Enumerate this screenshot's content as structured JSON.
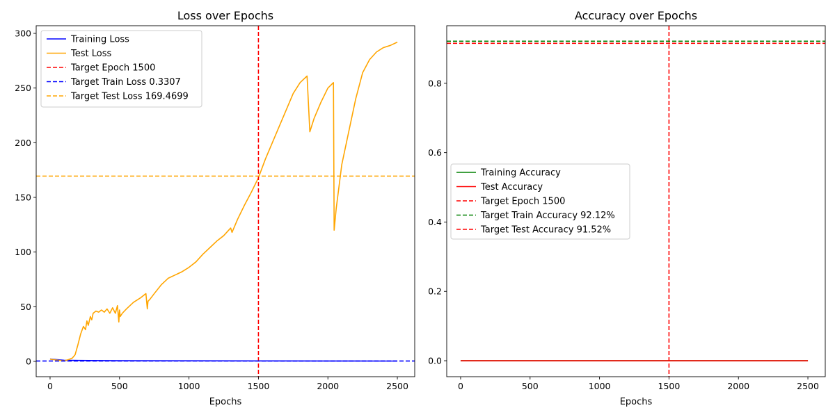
{
  "chart_data": [
    {
      "type": "line",
      "title": "Loss over Epochs",
      "xlabel": "Epochs",
      "ylabel": "",
      "xlim": [
        -100,
        2625
      ],
      "ylim": [
        -14,
        307
      ],
      "xticks": [
        0,
        500,
        1000,
        1500,
        2000,
        2500
      ],
      "yticks": [
        0,
        50,
        100,
        150,
        200,
        250,
        300
      ],
      "grid": false,
      "legend_position": "upper-left",
      "series": [
        {
          "name": "Training Loss",
          "color": "#0000ff",
          "style": "solid",
          "x": [
            0,
            100,
            200,
            500,
            1000,
            1500,
            2000,
            2500
          ],
          "y": [
            2.2,
            1.0,
            0.8,
            0.6,
            0.5,
            0.4,
            0.35,
            0.3
          ]
        },
        {
          "name": "Test Loss",
          "color": "#ffa500",
          "style": "solid",
          "x": [
            0,
            30,
            60,
            100,
            130,
            160,
            180,
            200,
            220,
            240,
            255,
            265,
            275,
            290,
            300,
            310,
            330,
            350,
            370,
            390,
            410,
            430,
            450,
            470,
            485,
            495,
            500,
            505,
            520,
            550,
            600,
            650,
            690,
            700,
            705,
            720,
            750,
            800,
            850,
            900,
            950,
            1000,
            1050,
            1100,
            1150,
            1200,
            1250,
            1300,
            1310,
            1350,
            1400,
            1450,
            1500,
            1550,
            1600,
            1650,
            1700,
            1750,
            1800,
            1850,
            1870,
            1875,
            1900,
            1950,
            2000,
            2040,
            2045,
            2060,
            2080,
            2100,
            2150,
            2200,
            2250,
            2300,
            2350,
            2400,
            2450,
            2500
          ],
          "y": [
            2,
            1.5,
            1,
            0.5,
            1.5,
            3,
            6,
            15,
            25,
            32,
            29,
            37,
            33,
            41,
            38,
            44,
            46,
            45,
            47,
            45,
            48,
            44,
            49,
            44,
            51,
            36,
            47,
            41,
            44,
            48,
            54,
            58,
            62,
            48,
            55,
            57,
            62,
            70,
            76,
            79,
            82,
            86,
            91,
            98,
            104,
            110,
            115,
            122,
            118,
            130,
            143,
            155,
            168,
            185,
            200,
            215,
            230,
            245,
            255,
            261,
            210,
            212,
            222,
            237,
            250,
            255,
            120,
            140,
            160,
            180,
            210,
            240,
            264,
            276,
            283,
            287,
            289,
            292
          ]
        }
      ],
      "reference_lines": [
        {
          "name": "Target Epoch 1500",
          "orientation": "vertical",
          "value": 1500,
          "color": "#ff0000",
          "style": "dashed"
        },
        {
          "name": "Target Train Loss 0.3307",
          "orientation": "horizontal",
          "value": 0.3307,
          "color": "#0000ff",
          "style": "dashed"
        },
        {
          "name": "Target Test Loss 169.4699",
          "orientation": "horizontal",
          "value": 169.4699,
          "color": "#ffa500",
          "style": "dashed"
        }
      ]
    },
    {
      "type": "line",
      "title": "Accuracy over Epochs",
      "xlabel": "Epochs",
      "ylabel": "",
      "xlim": [
        -100,
        2625
      ],
      "ylim": [
        -0.046,
        0.966
      ],
      "xticks": [
        0,
        500,
        1000,
        1500,
        2000,
        2500
      ],
      "yticks": [
        0.0,
        0.2,
        0.4,
        0.6,
        0.8
      ],
      "ytick_labels": [
        "0.0",
        "0.2",
        "0.4",
        "0.6",
        "0.8"
      ],
      "grid": false,
      "legend_position": "center-left",
      "series": [
        {
          "name": "Training Accuracy",
          "color": "#008000",
          "style": "solid",
          "x": [
            0,
            2500
          ],
          "y": [
            0,
            0
          ]
        },
        {
          "name": "Test Accuracy",
          "color": "#ff0000",
          "style": "solid",
          "x": [
            0,
            2500
          ],
          "y": [
            0,
            0
          ]
        }
      ],
      "reference_lines": [
        {
          "name": "Target Epoch 1500",
          "orientation": "vertical",
          "value": 1500,
          "color": "#ff0000",
          "style": "dashed"
        },
        {
          "name": "Target Train Accuracy 92.12%",
          "orientation": "horizontal",
          "value": 0.9212,
          "color": "#008000",
          "style": "dashed"
        },
        {
          "name": "Target Test Accuracy 91.52%",
          "orientation": "horizontal",
          "value": 0.9152,
          "color": "#ff0000",
          "style": "dashed"
        }
      ]
    }
  ]
}
